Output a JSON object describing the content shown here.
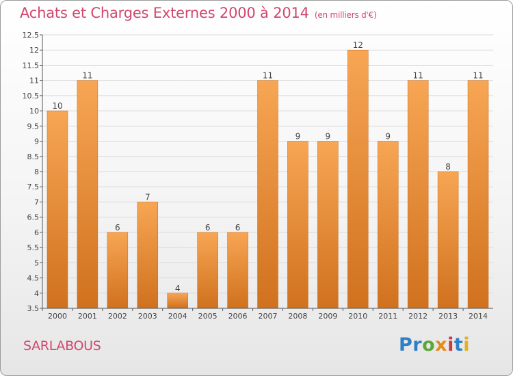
{
  "title": "Achats et Charges Externes 2000 à 2014",
  "subtitle": "(en milliers d'€)",
  "commune": "SARLABOUS",
  "logo": {
    "p1": "Pr",
    "p2": "o",
    "p3": "x",
    "p4": "i",
    "p5": "t",
    "p6": "i"
  },
  "colors": {
    "bar_light": "#f7a654",
    "bar_dark": "#d0711e",
    "title": "#d2466e"
  },
  "chart_data": {
    "type": "bar",
    "categories": [
      "2000",
      "2001",
      "2002",
      "2003",
      "2004",
      "2005",
      "2006",
      "2007",
      "2008",
      "2009",
      "2010",
      "2011",
      "2012",
      "2013",
      "2014"
    ],
    "values": [
      10,
      11,
      6,
      7,
      4,
      6,
      6,
      11,
      9,
      9,
      12,
      9,
      11,
      8,
      11
    ],
    "value_labels": [
      "10",
      "11",
      "6",
      "7",
      "4",
      "6",
      "6",
      "11",
      "9",
      "9",
      "12",
      "9",
      "11",
      "8",
      "11"
    ],
    "ylim": [
      3.5,
      12.5
    ],
    "yticks": [
      "3.5",
      "4",
      "4.5",
      "5",
      "5.5",
      "6",
      "6.5",
      "7",
      "7.5",
      "8",
      "8.5",
      "9",
      "9.5",
      "10",
      "10.5",
      "11",
      "11.5",
      "12",
      "12.5"
    ],
    "ytick_values": [
      3.5,
      4,
      4.5,
      5,
      5.5,
      6,
      6.5,
      7,
      7.5,
      8,
      8.5,
      9,
      9.5,
      10,
      10.5,
      11,
      11.5,
      12,
      12.5
    ],
    "grid": true
  }
}
